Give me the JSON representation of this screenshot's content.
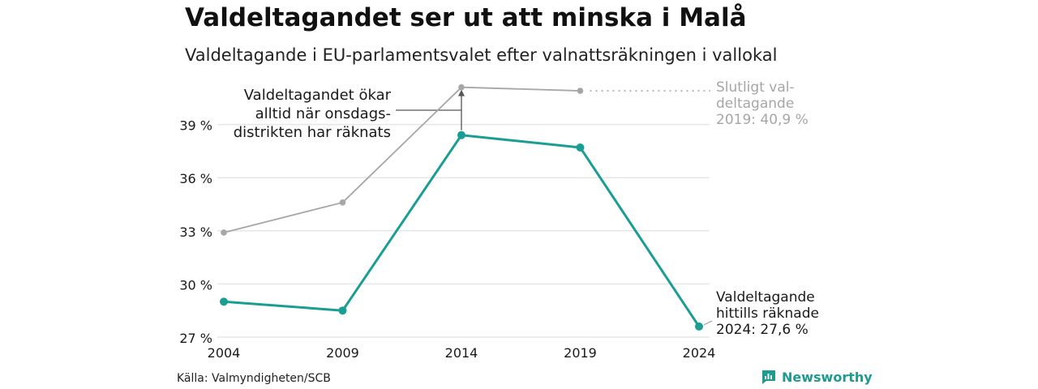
{
  "title": "Valdeltagandet ser ut att minska i Malå",
  "subtitle": "Valdeltagande i EU-parlamentsvalet efter valnattsräkningen i vallokal",
  "source": "Källa: Valmyndigheten/SCB",
  "brand": "Newsworthy",
  "colors": {
    "current": "#1a9e94",
    "final": "#a6a6a6",
    "grid": "#e6e6e6",
    "annotation": "#555555"
  },
  "chart_data": {
    "type": "line",
    "x": [
      "2004",
      "2009",
      "2014",
      "2019",
      "2024"
    ],
    "ylim": [
      27,
      42
    ],
    "yticks": [
      27,
      30,
      33,
      36,
      39
    ],
    "ytick_labels": [
      "27 %",
      "30 %",
      "33 %",
      "36 %",
      "39 %"
    ],
    "series": [
      {
        "key": "final",
        "values": [
          32.9,
          34.6,
          41.1,
          40.9,
          null
        ],
        "label": [
          "Slutligt val-",
          "deltagande",
          "2019: 40,9 %"
        ]
      },
      {
        "key": "current",
        "values": [
          29.0,
          28.5,
          38.4,
          37.7,
          27.6
        ],
        "label": [
          "Valdeltagande",
          "hittills räknade",
          "2024: 27,6 %"
        ]
      }
    ],
    "annotation": {
      "lines": [
        "Valdeltagandet ökar",
        "alltid när onsdags-",
        "distrikten har räknats"
      ],
      "target_x": "2014"
    }
  }
}
